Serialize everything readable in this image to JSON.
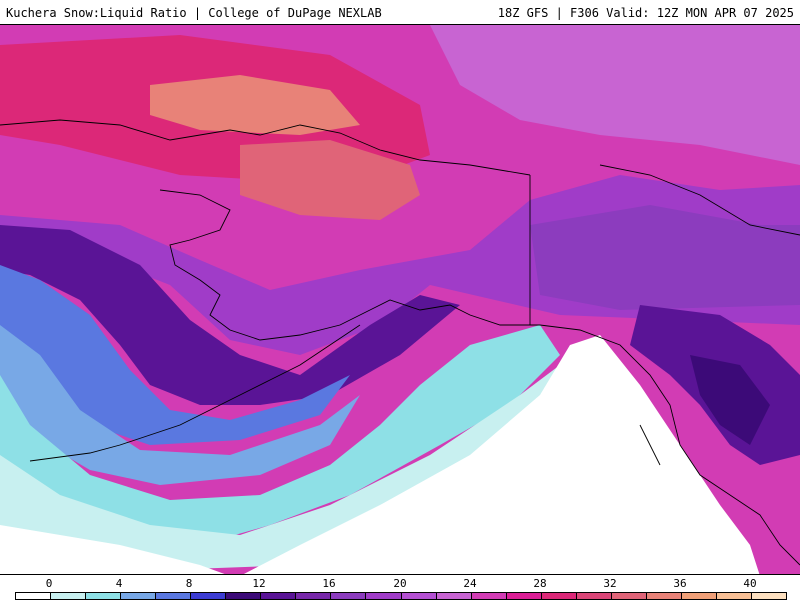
{
  "header": {
    "title_left": "Kuchera Snow:Liquid Ratio | College of DuPage NEXLAB",
    "title_right": "18Z GFS | F306 Valid: 12Z MON APR 07 2025"
  },
  "colorbar": {
    "tick_labels": [
      "0",
      "4",
      "8",
      "12",
      "16",
      "20",
      "24",
      "28",
      "32",
      "36",
      "40"
    ],
    "colors": [
      "#ffffff",
      "#c8f0f0",
      "#8ee0e6",
      "#78a8e6",
      "#5a78e0",
      "#3c3cd2",
      "#3c0a78",
      "#5a1496",
      "#7828aa",
      "#8c3cbe",
      "#a03cc8",
      "#b450d2",
      "#c864d2",
      "#d23cb4",
      "#dc1e96",
      "#dc2878",
      "#dc4678",
      "#e06478",
      "#e88278",
      "#f0a078",
      "#f8c096",
      "#fde0c0"
    ]
  },
  "map": {
    "region": "Alaska and northeast Pacific",
    "palette": {
      "ocean_low": "#ffffff",
      "cyan_light": "#c8f0f0",
      "cyan": "#8ee0e6",
      "blue_light": "#78a8e6",
      "blue": "#5a78e0",
      "deep_purple": "#3c0a78",
      "purple": "#7828aa",
      "violet": "#a03cc8",
      "magenta": "#d23cb4",
      "pink": "#dc2878",
      "salmon": "#e88278"
    }
  }
}
